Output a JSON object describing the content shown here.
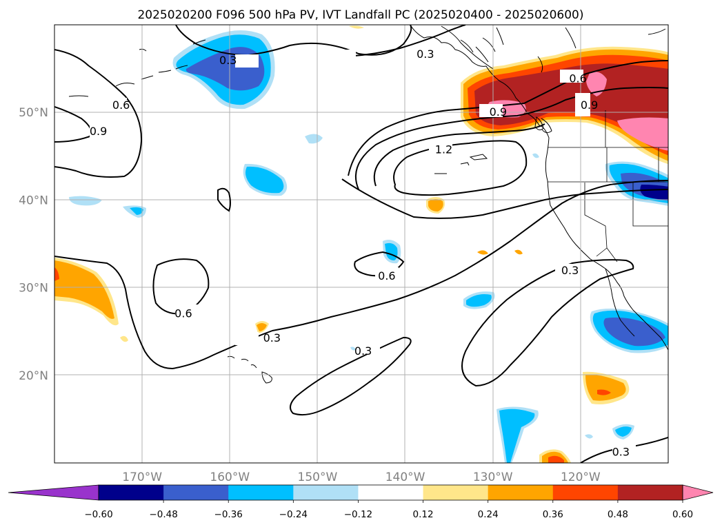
{
  "title": "2025020200 F096 500 hPa PV, IVT Landfall PC (2025020400 - 2025020600)",
  "map": {
    "projection": "PlateCarree",
    "lon_range": [
      -180,
      -110
    ],
    "lat_range": [
      10,
      60
    ],
    "gridlines": true,
    "lon_ticks": [
      "170°W",
      "160°W",
      "150°W",
      "140°W",
      "130°W",
      "120°W"
    ],
    "lat_ticks": [
      "20°N",
      "30°N",
      "40°N",
      "50°N"
    ]
  },
  "colorbar": {
    "levels": [
      "-0.60",
      "-0.48",
      "-0.36",
      "-0.24",
      "-0.12",
      "0.12",
      "0.24",
      "0.36",
      "0.48",
      "0.60"
    ],
    "colors": [
      "#9933cc",
      "#00008b",
      "#3a5fcd",
      "#00bfff",
      "#b0e0f6",
      "#ffffff",
      "#ffe68a",
      "#ffa500",
      "#ff4500",
      "#b22222",
      "#ff85b0"
    ],
    "extend": "both"
  },
  "contour_labels": [
    {
      "text": "0.3",
      "lon": -137.7,
      "lat": 56.7
    },
    {
      "text": "0.3",
      "lon": -160.2,
      "lat": 56.0
    },
    {
      "text": "0.6",
      "lon": -172.4,
      "lat": 50.9
    },
    {
      "text": "0.9",
      "lon": -175.0,
      "lat": 47.9
    },
    {
      "text": "0.6",
      "lon": -120.3,
      "lat": 53.9
    },
    {
      "text": "0.9",
      "lon": -119.0,
      "lat": 50.9
    },
    {
      "text": "0.9",
      "lon": -129.4,
      "lat": 50.1
    },
    {
      "text": "1.2",
      "lon": -135.6,
      "lat": 45.8
    },
    {
      "text": "0.6",
      "lon": -142.1,
      "lat": 31.4
    },
    {
      "text": "0.6",
      "lon": -165.3,
      "lat": 27.1
    },
    {
      "text": "0.3",
      "lon": -155.2,
      "lat": 24.3
    },
    {
      "text": "0.3",
      "lon": -144.8,
      "lat": 22.8
    },
    {
      "text": "0.3",
      "lon": -121.2,
      "lat": 32.0
    },
    {
      "text": "0.3",
      "lon": -115.4,
      "lat": 11.3
    }
  ]
}
